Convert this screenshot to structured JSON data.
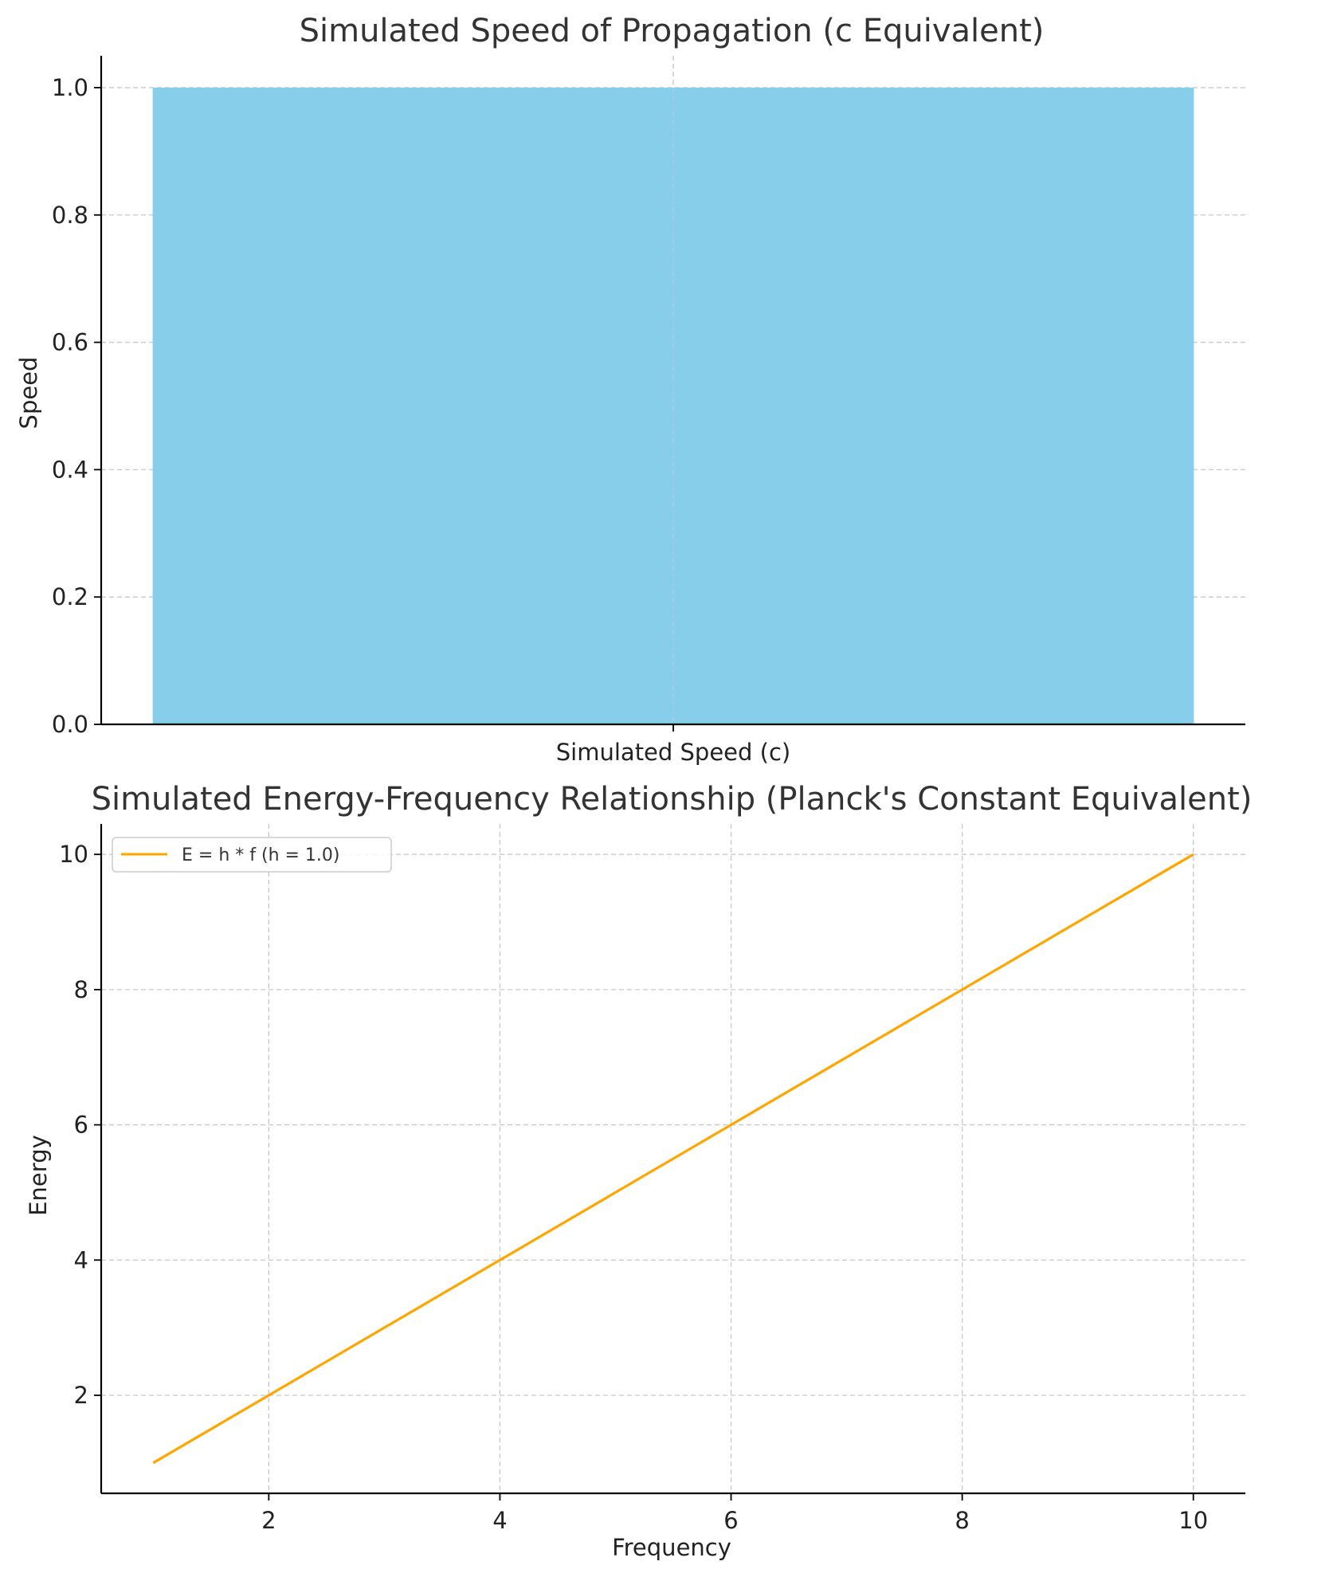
{
  "chart_data": [
    {
      "type": "bar",
      "title": "Simulated Speed of Propagation (c Equivalent)",
      "xlabel": "",
      "ylabel": "Speed",
      "categories": [
        "Simulated Speed (c)"
      ],
      "values": [
        1.0
      ],
      "ylim": [
        0,
        1.05
      ],
      "yticks": [
        "0.0",
        "0.2",
        "0.4",
        "0.6",
        "0.8",
        "1.0"
      ],
      "bar_color": "#87CEEB",
      "grid": true
    },
    {
      "type": "line",
      "title": "Simulated Energy-Frequency Relationship (Planck's Constant Equivalent)",
      "xlabel": "Frequency",
      "ylabel": "Energy",
      "x": [
        1,
        2,
        3,
        4,
        5,
        6,
        7,
        8,
        9,
        10
      ],
      "series": [
        {
          "name": "E = h * f (h = 1.0)",
          "values": [
            1,
            2,
            3,
            4,
            5,
            6,
            7,
            8,
            9,
            10
          ],
          "color": "#FFA500"
        }
      ],
      "xlim": [
        0.55,
        10.45
      ],
      "ylim": [
        0.55,
        10.45
      ],
      "xticks": [
        2,
        4,
        6,
        8,
        10
      ],
      "yticks": [
        2,
        4,
        6,
        8,
        10
      ],
      "legend": "top-left",
      "grid": true
    }
  ]
}
